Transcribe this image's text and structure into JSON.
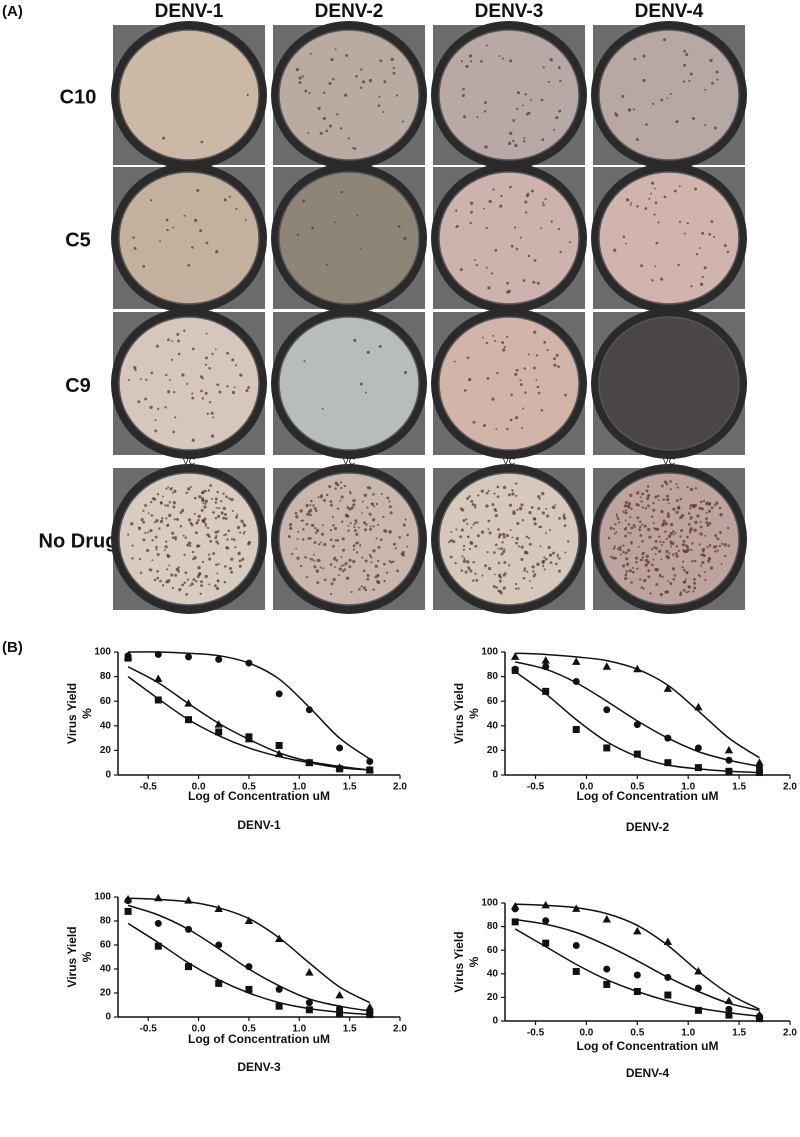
{
  "panel_a": {
    "label": "(A)",
    "columns": [
      "DENV-1",
      "DENV-2",
      "DENV-3",
      "DENV-4"
    ],
    "rows": [
      "C10",
      "C5",
      "C9",
      "No Drug"
    ],
    "vc_labels": [
      "VC",
      "VC",
      "VC",
      "VC"
    ]
  },
  "panel_b": {
    "label": "(B)"
  },
  "chart_data": [
    {
      "type": "scatter",
      "title": "DENV-1",
      "xlabel": "Log of Concentration uM",
      "ylabel": "Virus Yield",
      "ylabel_unit": "%",
      "x": [
        -0.7,
        -0.4,
        -0.1,
        0.2,
        0.5,
        0.8,
        1.1,
        1.4,
        1.7
      ],
      "xlim": [
        -0.8,
        2.0
      ],
      "xticks": [
        -0.5,
        {
          "value": 0,
          "label": "0.0"
        },
        0.5,
        {
          "value": 1,
          "label": "1.0"
        },
        1.5,
        {
          "value": 2,
          "label": "2.0"
        }
      ],
      "ylim": [
        0,
        100
      ],
      "yticks": [
        0,
        20,
        40,
        60,
        80,
        100
      ],
      "series": [
        {
          "marker": "circle",
          "color": "#111111",
          "values": [
            97,
            98,
            96,
            94,
            91,
            66,
            53,
            22,
            11
          ],
          "fit": [
            100,
            100,
            99,
            97,
            91,
            78,
            55,
            30,
            13
          ]
        },
        {
          "marker": "square",
          "color": "#111111",
          "values": [
            95,
            61,
            45,
            35,
            31,
            24,
            10,
            5,
            4
          ],
          "fit": [
            80,
            62,
            45,
            32,
            22,
            15,
            10,
            6,
            4
          ]
        },
        {
          "marker": "triangle",
          "color": "#111111",
          "values": [
            96,
            78,
            58,
            41,
            29,
            17,
            10,
            6,
            4
          ],
          "fit": [
            88,
            75,
            58,
            42,
            29,
            18,
            11,
            7,
            4
          ]
        }
      ]
    },
    {
      "type": "scatter",
      "title": "DENV-2",
      "xlabel": "Log of Concentration uM",
      "ylabel": "Virus Yield",
      "ylabel_unit": "%",
      "x": [
        -0.7,
        -0.4,
        -0.1,
        0.2,
        0.5,
        0.8,
        1.1,
        1.4,
        1.7
      ],
      "xlim": [
        -0.8,
        2.0
      ],
      "xticks": [
        -0.5,
        {
          "value": 0,
          "label": "0.0"
        },
        0.5,
        {
          "value": 1,
          "label": "1.0"
        },
        1.5,
        {
          "value": 2,
          "label": "2.0"
        }
      ],
      "ylim": [
        0,
        100
      ],
      "yticks": [
        0,
        20,
        40,
        60,
        80,
        100
      ],
      "series": [
        {
          "marker": "triangle",
          "color": "#111111",
          "values": [
            96,
            93,
            92,
            88,
            86,
            70,
            55,
            20,
            10
          ],
          "fit": [
            99,
            98,
            96,
            93,
            86,
            73,
            52,
            30,
            14
          ]
        },
        {
          "marker": "circle",
          "color": "#111111",
          "values": [
            86,
            88,
            76,
            53,
            41,
            30,
            22,
            12,
            6
          ],
          "fit": [
            92,
            86,
            75,
            60,
            44,
            30,
            19,
            12,
            7
          ]
        },
        {
          "marker": "square",
          "color": "#111111",
          "values": [
            85,
            68,
            37,
            22,
            17,
            10,
            6,
            3,
            2
          ],
          "fit": [
            84,
            66,
            45,
            27,
            15,
            8,
            5,
            3,
            2
          ]
        }
      ]
    },
    {
      "type": "scatter",
      "title": "DENV-3",
      "xlabel": "Log of Concentration uM",
      "ylabel": "Virus Yield",
      "ylabel_unit": "%",
      "x": [
        -0.7,
        -0.4,
        -0.1,
        0.2,
        0.5,
        0.8,
        1.1,
        1.4,
        1.7
      ],
      "xlim": [
        -0.8,
        2.0
      ],
      "xticks": [
        -0.5,
        {
          "value": 0,
          "label": "0.0"
        },
        0.5,
        {
          "value": 1,
          "label": "1.0"
        },
        1.5,
        {
          "value": 2,
          "label": "2.0"
        }
      ],
      "ylim": [
        0,
        100
      ],
      "yticks": [
        0,
        20,
        40,
        60,
        80,
        100
      ],
      "series": [
        {
          "marker": "triangle",
          "color": "#111111",
          "values": [
            98,
            99,
            97,
            90,
            80,
            65,
            37,
            18,
            8
          ],
          "fit": [
            99,
            98,
            96,
            91,
            82,
            66,
            45,
            25,
            12
          ]
        },
        {
          "marker": "circle",
          "color": "#111111",
          "values": [
            97,
            78,
            73,
            60,
            42,
            23,
            12,
            7,
            4
          ],
          "fit": [
            93,
            85,
            73,
            57,
            40,
            26,
            15,
            9,
            5
          ]
        },
        {
          "marker": "square",
          "color": "#111111",
          "values": [
            88,
            59,
            42,
            28,
            23,
            9,
            6,
            3,
            2
          ],
          "fit": [
            78,
            62,
            45,
            31,
            20,
            12,
            7,
            4,
            2
          ]
        }
      ]
    },
    {
      "type": "scatter",
      "title": "DENV-4",
      "xlabel": "Log of Concentration uM",
      "ylabel": "Virus Yield",
      "ylabel_unit": "%",
      "x": [
        -0.7,
        -0.4,
        -0.1,
        0.2,
        0.5,
        0.8,
        1.1,
        1.4,
        1.7
      ],
      "xlim": [
        -0.8,
        2.0
      ],
      "xticks": [
        -0.5,
        {
          "value": 0,
          "label": "0.0"
        },
        0.5,
        {
          "value": 1,
          "label": "1.0"
        },
        1.5,
        {
          "value": 2,
          "label": "2.0"
        }
      ],
      "ylim": [
        0,
        100
      ],
      "yticks": [
        0,
        20,
        40,
        60,
        80,
        100
      ],
      "series": [
        {
          "marker": "triangle",
          "color": "#111111",
          "values": [
            97,
            98,
            95,
            86,
            76,
            67,
            42,
            17,
            5
          ],
          "fit": [
            99,
            98,
            96,
            91,
            81,
            64,
            42,
            23,
            10
          ]
        },
        {
          "marker": "circle",
          "color": "#111111",
          "values": [
            95,
            85,
            64,
            44,
            39,
            37,
            28,
            10,
            4
          ],
          "fit": [
            86,
            82,
            75,
            64,
            51,
            37,
            25,
            15,
            9
          ]
        },
        {
          "marker": "square",
          "color": "#111111",
          "values": [
            84,
            66,
            42,
            31,
            25,
            22,
            9,
            5,
            2
          ],
          "fit": [
            78,
            63,
            48,
            35,
            25,
            17,
            11,
            7,
            4
          ]
        }
      ]
    }
  ]
}
